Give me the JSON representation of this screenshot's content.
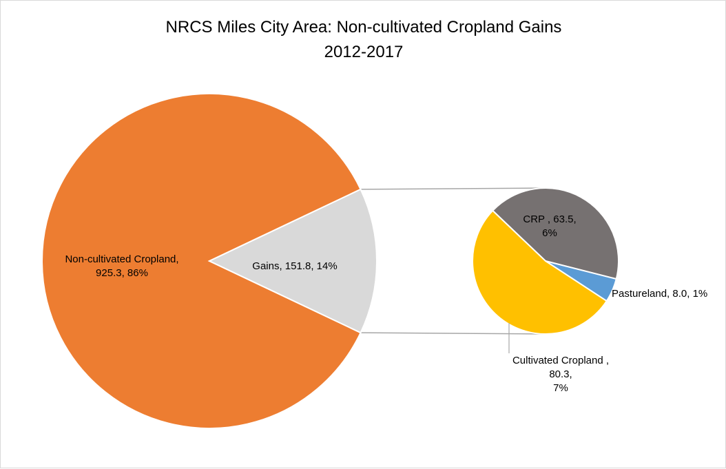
{
  "chart_data": {
    "type": "pie",
    "subtype": "pie-of-pie",
    "title": [
      "NRCS Miles City Area: Non-cultivated Cropland Gains",
      "2012-2017"
    ],
    "main_pie": {
      "slices": [
        {
          "name": "Non-cultivated Cropland",
          "value": 925.3,
          "percent": "86%",
          "color": "#ED7D31",
          "label_lines": [
            "Non-cultivated Cropland,",
            "925.3, 86%"
          ]
        },
        {
          "name": "Gains",
          "value": 151.8,
          "percent": "14%",
          "color": "#D9D9D9",
          "label_lines": [
            "Gains, 151.8, 14%"
          ]
        }
      ]
    },
    "secondary_pie": {
      "slices": [
        {
          "name": "CRP",
          "value": 63.5,
          "percent": "6%",
          "color": "#767171",
          "label_lines": [
            "CRP , 63.5,",
            "6%"
          ]
        },
        {
          "name": "Pastureland",
          "value": 8.0,
          "percent": "1%",
          "color": "#5B9BD5",
          "label_lines": [
            "Pastureland, 8.0, 1%"
          ]
        },
        {
          "name": "Cultivated Cropland",
          "value": 80.3,
          "percent": "7%",
          "color": "#FFC000",
          "label_lines": [
            "Cultivated Cropland ,",
            "80.3,",
            "7%"
          ]
        }
      ]
    },
    "slice_border_color": "#FFFFFF",
    "connector_color": "#A6A6A6"
  }
}
